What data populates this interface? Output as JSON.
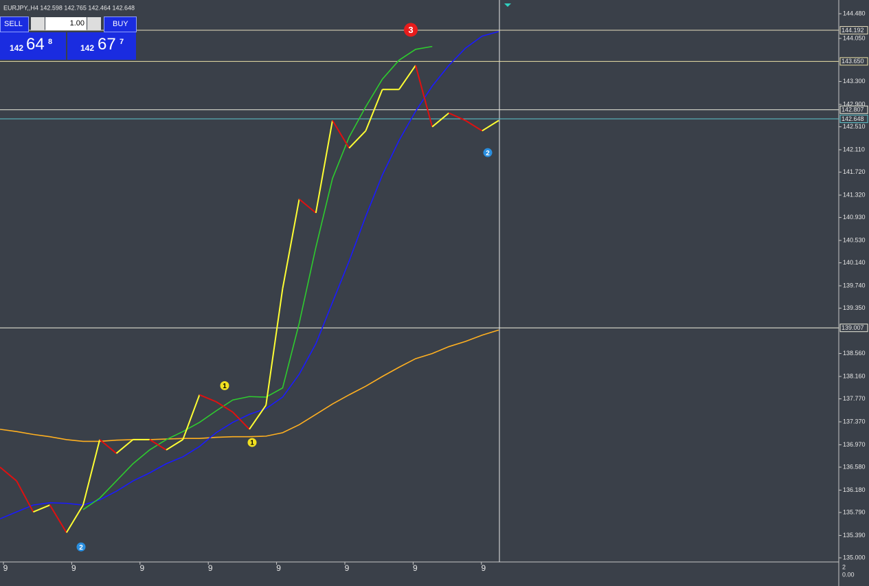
{
  "chart_data": {
    "type": "line",
    "title": "EURJPY,,H4  142.598 142.765 142.464 142.648",
    "ylim": [
      135.0,
      144.48
    ],
    "yticks": [
      {
        "value": 144.48,
        "label": "144.480"
      },
      {
        "value": 144.05,
        "label": "144.050"
      },
      {
        "value": 143.3,
        "label": "143.300"
      },
      {
        "value": 142.9,
        "label": "142.900"
      },
      {
        "value": 142.51,
        "label": "142.510"
      },
      {
        "value": 142.11,
        "label": "142.110"
      },
      {
        "value": 141.72,
        "label": "141.720"
      },
      {
        "value": 141.32,
        "label": "141.320"
      },
      {
        "value": 140.93,
        "label": "140.930"
      },
      {
        "value": 140.53,
        "label": "140.530"
      },
      {
        "value": 140.14,
        "label": "140.140"
      },
      {
        "value": 139.74,
        "label": "139.740"
      },
      {
        "value": 139.35,
        "label": "139.350"
      },
      {
        "value": 138.56,
        "label": "138.560"
      },
      {
        "value": 138.16,
        "label": "138.160"
      },
      {
        "value": 137.77,
        "label": "137.770"
      },
      {
        "value": 137.37,
        "label": "137.370"
      },
      {
        "value": 136.97,
        "label": "136.970"
      },
      {
        "value": 136.58,
        "label": "136.580"
      },
      {
        "value": 136.18,
        "label": "136.180"
      },
      {
        "value": 135.79,
        "label": "135.790"
      },
      {
        "value": 135.39,
        "label": "135.390"
      },
      {
        "value": 135.0,
        "label": "135.000"
      }
    ],
    "price_lines": [
      {
        "value": 144.192,
        "label": "144.192",
        "color": "#e8dfc0"
      },
      {
        "value": 143.65,
        "label": "143.650",
        "color": "#ece2a8"
      },
      {
        "value": 142.807,
        "label": "142.807",
        "color": "#f0f0e0"
      },
      {
        "value": 142.648,
        "label": "142.648",
        "color": "#5fc8d0"
      },
      {
        "value": 139.007,
        "label": "139.007",
        "color": "#f0f0e0"
      }
    ],
    "x_labels": [
      "9",
      "9",
      "9",
      "9",
      "9",
      "9",
      "9",
      "9"
    ],
    "series": [
      {
        "color": "#ffb020",
        "values": [
          137.24,
          137.2,
          137.15,
          137.11,
          137.06,
          137.03,
          137.03,
          137.05,
          137.06,
          137.06,
          137.07,
          137.08,
          137.08,
          137.1,
          137.11,
          137.11,
          137.12,
          137.18,
          137.32,
          137.5,
          137.68,
          137.84,
          137.99,
          138.16,
          138.32,
          138.47,
          138.56,
          138.68,
          138.77,
          138.88,
          138.97
        ]
      },
      {
        "color": "#1a1aff",
        "values": [
          135.68,
          135.8,
          135.92,
          135.96,
          135.95,
          135.92,
          136.01,
          136.16,
          136.34,
          136.48,
          136.64,
          136.76,
          136.94,
          137.18,
          137.36,
          137.5,
          137.6,
          137.8,
          138.2,
          138.73,
          139.45,
          140.17,
          140.95,
          141.67,
          142.27,
          142.78,
          143.22,
          143.58,
          143.88,
          144.09,
          144.17
        ]
      },
      {
        "color": "#2ecc2e",
        "values": [
          null,
          null,
          null,
          null,
          null,
          135.84,
          136.04,
          136.34,
          136.64,
          136.88,
          137.06,
          137.2,
          137.36,
          137.56,
          137.75,
          137.81,
          137.8,
          137.96,
          139.09,
          140.41,
          141.61,
          142.33,
          142.86,
          143.34,
          143.67,
          143.86,
          143.91,
          null,
          null,
          null,
          null
        ]
      }
    ],
    "swing": {
      "up_color": "#ffff33",
      "down_color": "#e01010",
      "values": [
        136.58,
        136.34,
        135.8,
        135.92,
        135.44,
        135.92,
        137.06,
        136.82,
        137.06,
        137.06,
        136.88,
        137.06,
        137.84,
        137.72,
        137.54,
        137.24,
        137.66,
        139.69,
        141.25,
        141.01,
        142.62,
        142.14,
        142.44,
        143.16,
        143.16,
        143.58,
        142.51,
        142.75,
        142.62,
        142.44,
        142.62
      ]
    },
    "markers": [
      {
        "label": "3",
        "color": "#e81c1c",
        "value": 144.2
      },
      {
        "label": "2",
        "color": "#2a8fe0",
        "value": 135.19
      },
      {
        "label": "2",
        "color": "#2a8fe0",
        "value": 142.06
      },
      {
        "label": "1",
        "color": "#f0e020",
        "value": 138.0
      },
      {
        "label": "1",
        "color": "#f0e020",
        "value": 137.01
      }
    ]
  },
  "trade_panel": {
    "sell": "SELL",
    "lots": "1.00",
    "buy": "BUY",
    "bid_big": "142",
    "bid_main": "64",
    "bid_small": "8",
    "ask_big": "142",
    "ask_main": "67",
    "ask_small": "7"
  },
  "sub_axis": {
    "top": "2",
    "mid": "0.00"
  }
}
